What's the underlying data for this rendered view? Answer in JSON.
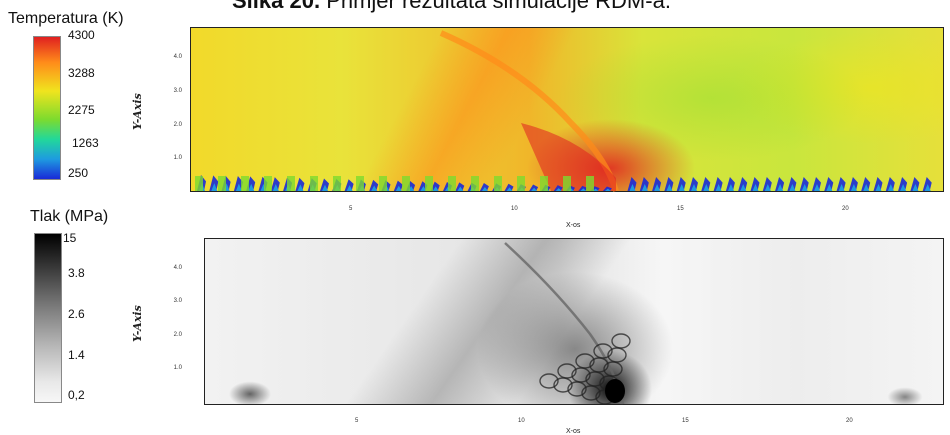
{
  "caption": {
    "bold": "Slika 20.",
    "rest": " Primjer rezultata simulacije RDM-a."
  },
  "colors": {
    "temp_high": "#e02020",
    "temp_mid_high": "#ff8c1a",
    "temp_mid": "#f0e41e",
    "temp_mid_low": "#7ddb2e",
    "temp_low": "#1e9be0",
    "temp_min": "#1a2ad8",
    "press_high": "#000000",
    "press_low": "#f7f7f7"
  },
  "temperature": {
    "title": "Temperatura (K)",
    "labels": [
      "4300",
      "3288",
      "2275",
      "1263",
      "250"
    ]
  },
  "pressure": {
    "title": "Tlak (MPa)",
    "labels": [
      "15",
      "3.8",
      "2.6",
      "1.4",
      "0,2"
    ]
  },
  "chart_data": [
    {
      "type": "heatmap",
      "field": "Temperatura (K)",
      "xlabel": "X-os",
      "ylabel": "Y-Axis",
      "x_ticks": [
        "5",
        "10",
        "15",
        "20"
      ],
      "y_ticks": [
        "4.0",
        "3.0",
        "2.0",
        "1.0"
      ],
      "colorbar": {
        "min": 250,
        "max": 4300
      }
    },
    {
      "type": "heatmap",
      "field": "Tlak (MPa)",
      "xlabel": "X-os",
      "ylabel": "Y-Axis",
      "x_ticks": [
        "5",
        "10",
        "15",
        "20"
      ],
      "y_ticks": [
        "4.0",
        "3.0",
        "2.0",
        "1.0"
      ],
      "colorbar": {
        "min": 0.2,
        "max": 15
      }
    }
  ]
}
